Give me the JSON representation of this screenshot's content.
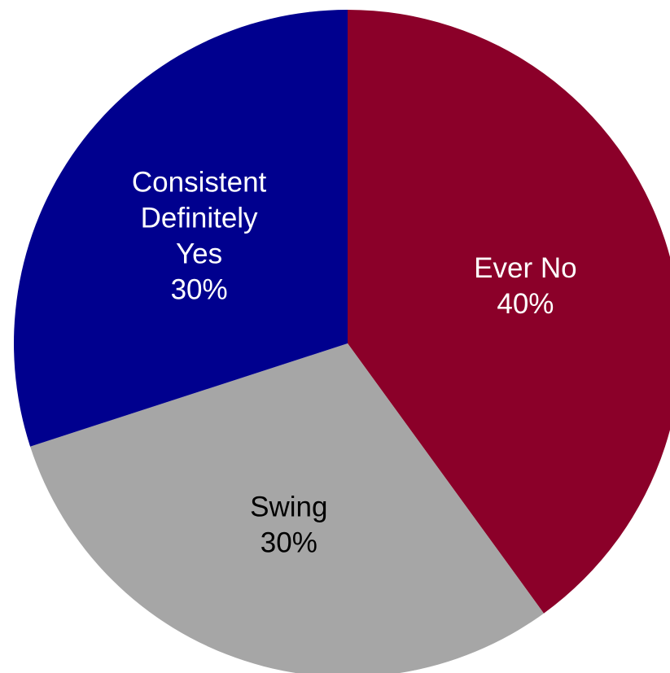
{
  "chart_data": {
    "type": "pie",
    "title": "",
    "slices": [
      {
        "name": "Ever No",
        "label_lines": [
          "Ever No",
          "40%"
        ],
        "value": 40,
        "color": "#8B0029",
        "label_color": "#ffffff"
      },
      {
        "name": "Swing",
        "label_lines": [
          "Swing",
          "30%"
        ],
        "value": 30,
        "color": "#A6A6A6",
        "label_color": "#000000"
      },
      {
        "name": "Consistent Definitely Yes",
        "label_lines": [
          "Consistent",
          "Definitely",
          "Yes",
          "30%"
        ],
        "value": 30,
        "color": "#00008E",
        "label_color": "#ffffff"
      }
    ],
    "start_angle": "12 o'clock",
    "direction": "clockwise",
    "legend": "none"
  }
}
